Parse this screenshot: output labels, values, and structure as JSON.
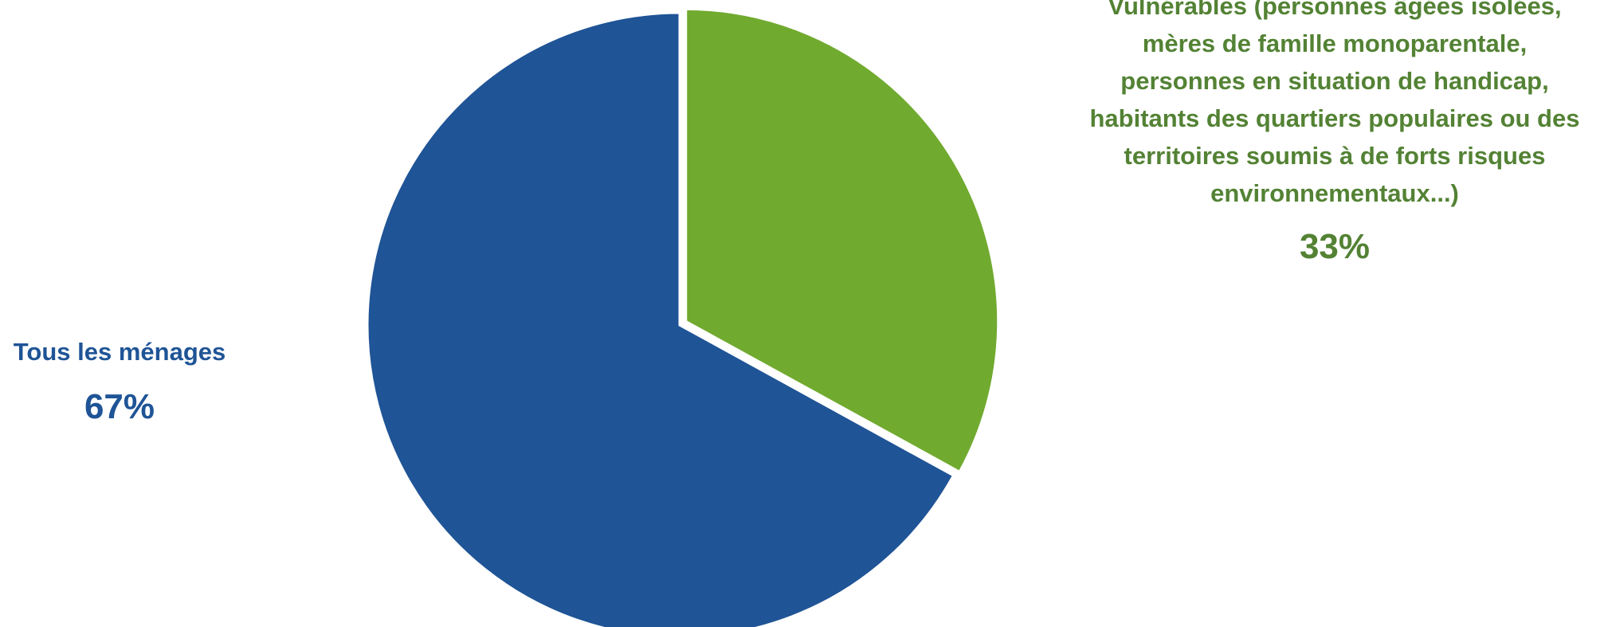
{
  "chart_data": {
    "type": "pie",
    "slices": [
      {
        "label": "Tous les ménages",
        "value": 67,
        "value_label": "67%",
        "color": "#1f5496"
      },
      {
        "label": "Vulnérables (personnes âgées isolées,\nmères de famille monoparentale,\npersonnes en situation de handicap,\nhabitants des quartiers populaires ou des\nterritoires soumis à de forts risques\nenvironnementaux...)",
        "value": 33,
        "value_label": "33%",
        "color": "#70aa2f"
      }
    ],
    "text_colors": [
      "#1f5496",
      "#538234"
    ],
    "exploded_slice": 1
  }
}
